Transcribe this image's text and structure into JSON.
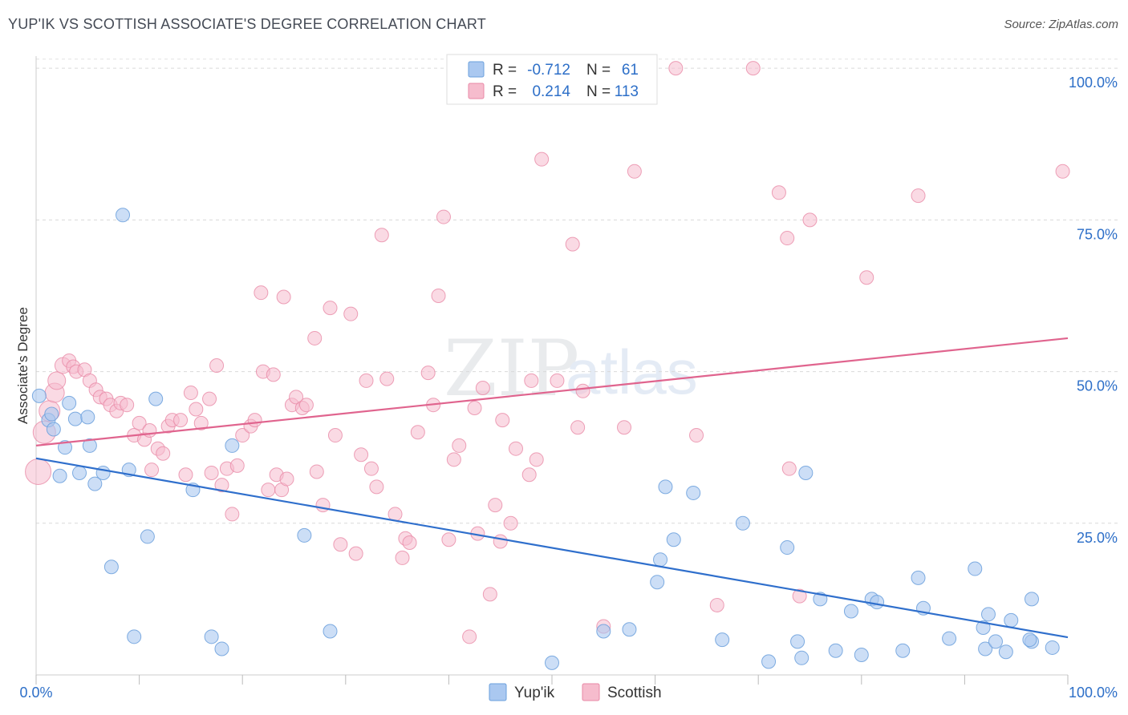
{
  "title": "YUP'IK VS SCOTTISH ASSOCIATE'S DEGREE CORRELATION CHART",
  "source": "Source: ZipAtlas.com",
  "watermark": {
    "zip": "ZIP",
    "atlas": "atlas"
  },
  "legend_box": {
    "rows": [
      {
        "r_label": "R =",
        "r_value": "-0.712",
        "n_label": "N =",
        "n_value": "61"
      },
      {
        "r_label": "R =",
        "r_value": "0.214",
        "n_label": "N =",
        "n_value": "113"
      }
    ]
  },
  "bottom_legend": [
    "Yup'ik",
    "Scottish"
  ],
  "colors": {
    "yupik_fill": "#aac8f0",
    "yupik_stroke": "#6a9fdc",
    "yupik_line": "#2f6fcc",
    "scottish_fill": "#f6bccd",
    "scottish_stroke": "#e889a6",
    "scottish_line": "#e0648e",
    "value_text": "#2d6fc8",
    "label_text": "#333333"
  },
  "chart_data": {
    "type": "scatter",
    "title": "YUP'IK VS SCOTTISH ASSOCIATE'S DEGREE CORRELATION CHART",
    "xlabel": "",
    "ylabel": "Associate's Degree",
    "xlim": [
      0,
      100
    ],
    "ylim": [
      0,
      102
    ],
    "x_tick_labels": [
      "0.0%",
      "100.0%"
    ],
    "y_ticks": [
      25,
      50,
      75,
      100
    ],
    "y_tick_labels": [
      "25.0%",
      "50.0%",
      "75.0%",
      "100.0%"
    ],
    "grid": true,
    "series": [
      {
        "name": "Yup'ik",
        "r": -0.712,
        "n": 61,
        "trend": [
          [
            0,
            35.7
          ],
          [
            100,
            6.2
          ]
        ],
        "points": [
          [
            0.3,
            46
          ],
          [
            1.2,
            42
          ],
          [
            1.5,
            43
          ],
          [
            1.7,
            40.5
          ],
          [
            2.3,
            32.8
          ],
          [
            2.8,
            37.5
          ],
          [
            3.2,
            44.8
          ],
          [
            3.8,
            42.2
          ],
          [
            4.2,
            33.3
          ],
          [
            5.0,
            42.5
          ],
          [
            5.2,
            37.8
          ],
          [
            5.7,
            31.5
          ],
          [
            6.5,
            33.3
          ],
          [
            7.3,
            17.8
          ],
          [
            8.4,
            75.8
          ],
          [
            9.0,
            33.8
          ],
          [
            9.5,
            6.3
          ],
          [
            10.8,
            22.8
          ],
          [
            11.6,
            45.5
          ],
          [
            15.2,
            30.5
          ],
          [
            17.0,
            6.3
          ],
          [
            18.0,
            4.3
          ],
          [
            19.0,
            37.8
          ],
          [
            26.0,
            23.0
          ],
          [
            28.5,
            7.2
          ],
          [
            50.0,
            2.0
          ],
          [
            55.0,
            7.2
          ],
          [
            57.5,
            7.5
          ],
          [
            60.2,
            15.3
          ],
          [
            60.5,
            19.0
          ],
          [
            61.0,
            31.0
          ],
          [
            61.8,
            22.3
          ],
          [
            63.7,
            30.0
          ],
          [
            66.5,
            5.8
          ],
          [
            68.5,
            25.0
          ],
          [
            71.0,
            2.2
          ],
          [
            72.8,
            21.0
          ],
          [
            73.8,
            5.5
          ],
          [
            74.2,
            2.8
          ],
          [
            74.6,
            33.3
          ],
          [
            76.0,
            12.5
          ],
          [
            77.5,
            4.0
          ],
          [
            79.0,
            10.5
          ],
          [
            80.0,
            3.3
          ],
          [
            81.0,
            12.5
          ],
          [
            81.5,
            12.0
          ],
          [
            84.0,
            4.0
          ],
          [
            85.5,
            16.0
          ],
          [
            86.0,
            11.0
          ],
          [
            88.5,
            6.0
          ],
          [
            91.0,
            17.5
          ],
          [
            91.8,
            7.8
          ],
          [
            92.0,
            4.3
          ],
          [
            92.3,
            10.0
          ],
          [
            93.0,
            5.5
          ],
          [
            94.0,
            3.8
          ],
          [
            94.5,
            9.0
          ],
          [
            96.5,
            5.5
          ],
          [
            98.5,
            4.5
          ],
          [
            96.3,
            5.8
          ],
          [
            96.5,
            12.5
          ]
        ]
      },
      {
        "name": "Scottish",
        "r": 0.214,
        "n": 113,
        "trend": [
          [
            0,
            37.8
          ],
          [
            100,
            55.5
          ]
        ],
        "points": [
          [
            0.2,
            33.5
          ],
          [
            0.8,
            40
          ],
          [
            1.3,
            43.5
          ],
          [
            1.8,
            46.5
          ],
          [
            2.0,
            48.5
          ],
          [
            2.6,
            51
          ],
          [
            3.2,
            51.8
          ],
          [
            3.6,
            50.8
          ],
          [
            3.9,
            50
          ],
          [
            4.7,
            50.3
          ],
          [
            5.2,
            48.5
          ],
          [
            5.8,
            47
          ],
          [
            6.2,
            45.8
          ],
          [
            6.8,
            45.5
          ],
          [
            7.2,
            44.5
          ],
          [
            7.8,
            43.5
          ],
          [
            8.2,
            44.8
          ],
          [
            8.8,
            44.5
          ],
          [
            9.5,
            39.5
          ],
          [
            10.0,
            41.5
          ],
          [
            10.5,
            38.8
          ],
          [
            11.0,
            40.3
          ],
          [
            11.2,
            33.8
          ],
          [
            11.8,
            37.3
          ],
          [
            12.3,
            36.5
          ],
          [
            12.8,
            41
          ],
          [
            13.2,
            42
          ],
          [
            14.0,
            42
          ],
          [
            14.5,
            33
          ],
          [
            15.0,
            46.5
          ],
          [
            15.5,
            43.8
          ],
          [
            16.0,
            41.5
          ],
          [
            16.8,
            45.5
          ],
          [
            17.0,
            33.3
          ],
          [
            17.5,
            51
          ],
          [
            18.0,
            31.3
          ],
          [
            18.5,
            34
          ],
          [
            19.0,
            26.5
          ],
          [
            19.5,
            34.5
          ],
          [
            20.0,
            39.5
          ],
          [
            20.8,
            41
          ],
          [
            21.2,
            42
          ],
          [
            21.8,
            63
          ],
          [
            22.0,
            50
          ],
          [
            22.5,
            30.5
          ],
          [
            23.0,
            49.5
          ],
          [
            23.3,
            33
          ],
          [
            23.8,
            30.5
          ],
          [
            24.0,
            62.3
          ],
          [
            24.3,
            32.3
          ],
          [
            24.8,
            44.5
          ],
          [
            25.2,
            45.8
          ],
          [
            25.8,
            44
          ],
          [
            26.2,
            44.5
          ],
          [
            27.0,
            55.5
          ],
          [
            27.2,
            33.5
          ],
          [
            27.8,
            28
          ],
          [
            28.5,
            60.5
          ],
          [
            29.0,
            39.5
          ],
          [
            29.5,
            21.5
          ],
          [
            30.5,
            59.5
          ],
          [
            31.0,
            20
          ],
          [
            31.5,
            36.3
          ],
          [
            32.0,
            48.5
          ],
          [
            32.5,
            34
          ],
          [
            33.0,
            31
          ],
          [
            33.5,
            72.5
          ],
          [
            34.0,
            48.8
          ],
          [
            34.8,
            26.5
          ],
          [
            35.5,
            19.3
          ],
          [
            35.8,
            22.5
          ],
          [
            36.2,
            21.8
          ],
          [
            37.0,
            40
          ],
          [
            38.0,
            49.8
          ],
          [
            38.5,
            44.5
          ],
          [
            39.0,
            62.5
          ],
          [
            39.5,
            75.5
          ],
          [
            40.0,
            22.3
          ],
          [
            40.5,
            35.5
          ],
          [
            41.0,
            37.8
          ],
          [
            42.0,
            6.3
          ],
          [
            42.5,
            44
          ],
          [
            42.8,
            23.3
          ],
          [
            43.3,
            47.3
          ],
          [
            44.0,
            13.3
          ],
          [
            44.5,
            28
          ],
          [
            45.0,
            22
          ],
          [
            45.2,
            42
          ],
          [
            46.0,
            25
          ],
          [
            46.5,
            37.3
          ],
          [
            47.8,
            33
          ],
          [
            48.0,
            48.5
          ],
          [
            48.5,
            35.5
          ],
          [
            49.0,
            85
          ],
          [
            50.5,
            48.5
          ],
          [
            52.0,
            71
          ],
          [
            52.5,
            40.8
          ],
          [
            53.0,
            46.8
          ],
          [
            55.0,
            8
          ],
          [
            57.0,
            40.8
          ],
          [
            58.0,
            83
          ],
          [
            62.0,
            100
          ],
          [
            64.0,
            39.5
          ],
          [
            66.0,
            11.5
          ],
          [
            69.5,
            100
          ],
          [
            72.0,
            79.5
          ],
          [
            72.8,
            72
          ],
          [
            73.0,
            34
          ],
          [
            74.0,
            13
          ],
          [
            75.0,
            75
          ],
          [
            80.5,
            65.5
          ],
          [
            85.5,
            79
          ],
          [
            99.5,
            83
          ]
        ]
      }
    ]
  }
}
